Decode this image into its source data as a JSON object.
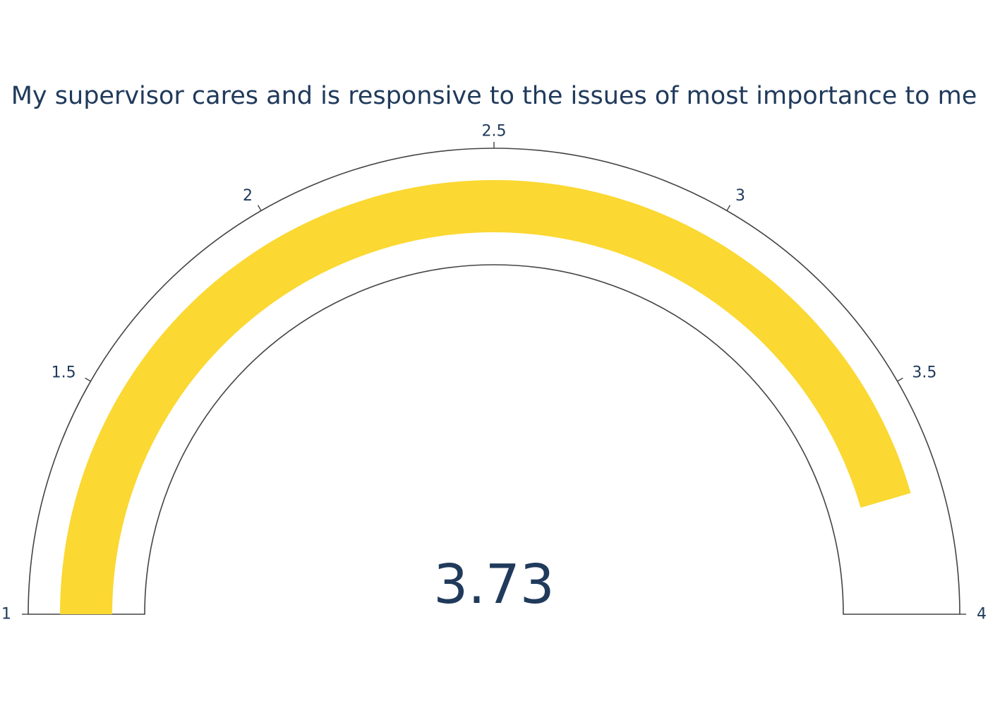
{
  "chart_data": {
    "type": "gauge",
    "title": "My supervisor cares and is responsive to the issues of most importance to me",
    "value": 3.73,
    "value_label": "3.73",
    "range": [
      1,
      4
    ],
    "ticks": [
      1,
      1.5,
      2,
      2.5,
      3,
      3.5,
      4
    ],
    "tick_labels": [
      "1",
      "1.5",
      "2",
      "2.5",
      "3",
      "3.5",
      "4"
    ],
    "bar_color": "#fbd832",
    "outline_color": "#444444",
    "text_color": "#203a5b"
  }
}
